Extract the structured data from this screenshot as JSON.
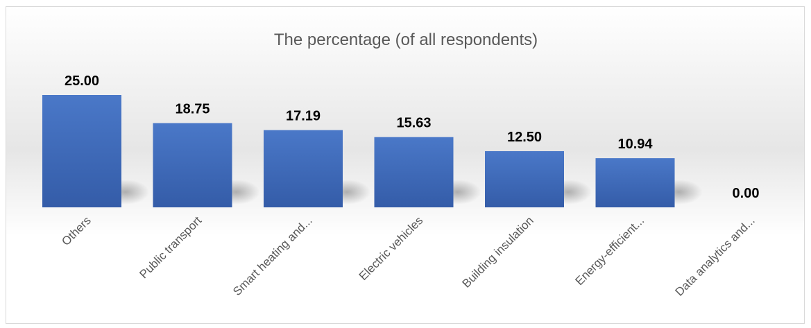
{
  "chart_data": {
    "type": "bar",
    "title": "The percentage (of all respondents)",
    "categories": [
      "Others",
      "Public transport",
      "Smart heating and...",
      "Electric vehicles",
      "Building insulation",
      "Energy-efficient...",
      "Data analytics and..."
    ],
    "values": [
      25.0,
      18.75,
      17.19,
      15.63,
      12.5,
      10.94,
      0.0
    ],
    "data_labels": [
      "25.00",
      "18.75",
      "17.19",
      "15.63",
      "12.50",
      "10.94",
      "0.00"
    ],
    "xlabel": "",
    "ylabel": "",
    "ylim": [
      0,
      25
    ],
    "grid": false,
    "legend": "none",
    "colors": {
      "bar_top": "#4a78c8",
      "bar_bottom": "#345ca8",
      "title": "#595959",
      "category_text": "#595959",
      "data_label": "#000000",
      "border": "#d9d9d9"
    }
  }
}
